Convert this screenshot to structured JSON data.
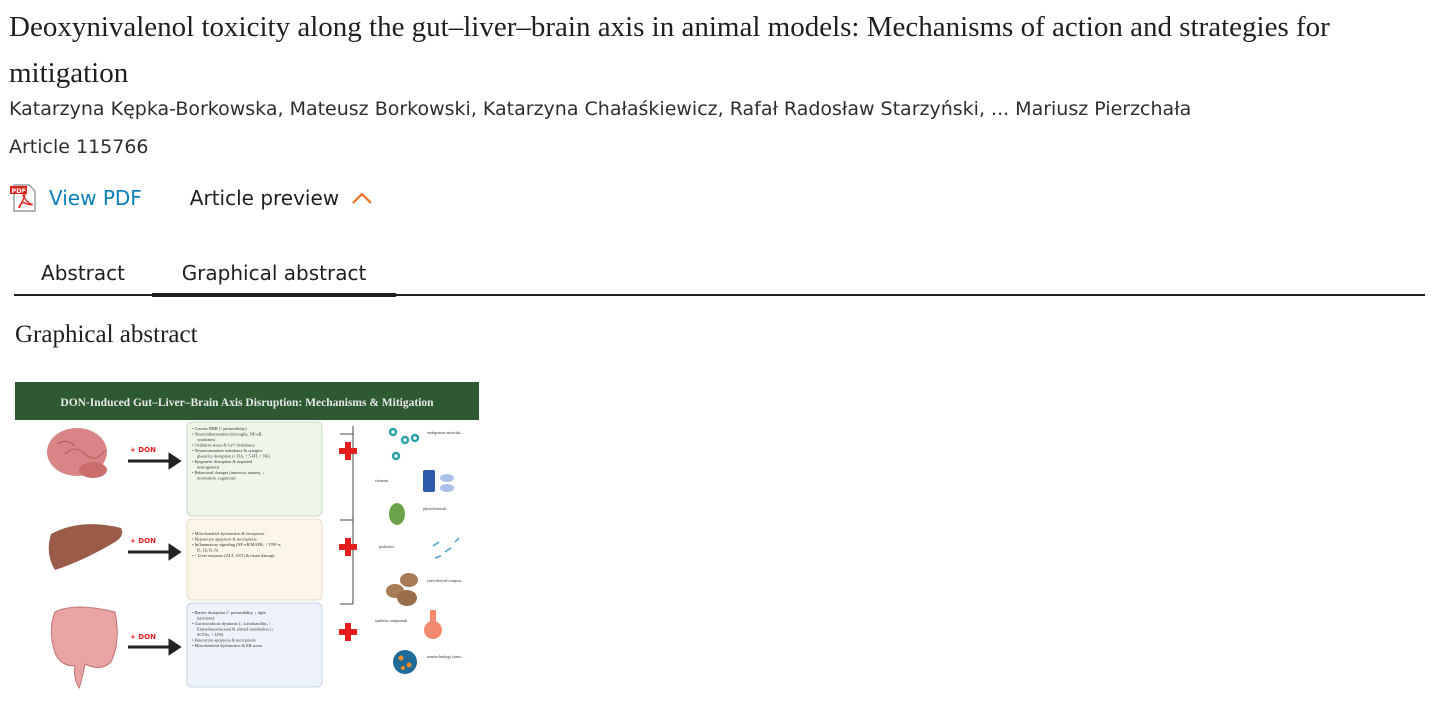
{
  "article": {
    "title": "Deoxynivalenol toxicity along the gut–liver–brain axis in animal models: Mechanisms of action and strategies for mitigation",
    "authors": "Katarzyna Kępka-Borkowska, Mateusz Borkowski, Katarzyna Chałaśkiewicz, Rafał Radosław Starzyński, ... Mariusz Pierzchała",
    "article_number": "Article 115766"
  },
  "actions": {
    "view_pdf": "View PDF",
    "article_preview": "Article preview",
    "pdf_icon_label": "PDF"
  },
  "colors": {
    "link": "#0c7dbb",
    "accent": "#f26f21",
    "figure_header": "#2d5a30"
  },
  "tabs": [
    {
      "label": "Abstract",
      "active": false
    },
    {
      "label": "Graphical abstract",
      "active": true
    }
  ],
  "graphical_abstract": {
    "heading": "Graphical abstract",
    "figure": {
      "title": "DON-Induced Gut–Liver–Brain Axis Disruption: Mechanisms & Mitigation",
      "exposure_label": "+ DON",
      "brain_effects": [
        "Crosses BBB (↑ permeability)",
        "Neuroinflammation (microglia, NF-κB, cytokines)",
        "Oxidative stress & Ca²⁺ imbalance",
        "Neurotransmitter imbalance & synaptic plasticity disruption (↓ DA, ↑ 5-HT, ↑ NE)",
        "Epigenetic disruption & impaired neurogenesis",
        "Behavioral changes (anorexia, anxiety, ↓ motivation, cognition)"
      ],
      "liver_effects": [
        "Mitochondrial dysfunction & ferroptosis",
        "Hepatocyte apoptosis & necroptosis",
        "Inflammatory signaling (NF-κB/MAPK; ↑ TNF-α, IL-1β, IL-6)",
        "↑ Liver enzymes (ALT, AST) & tissue damage"
      ],
      "gut_effects": [
        "Barrier disruption (↑ permeability, ↓ tight junctions)",
        "Gut microbiota dysbiosis (↓ Lactobacillus, ↑ Enterobacteriaceae) & altered metabolites (↓ SCFAs, ↑ LPS)",
        "Enterocyte apoptosis & necroptosis",
        "Mitochondrial dysfunction & ER stress"
      ],
      "mitigation": [
        "endogenous antioxidants",
        "vitamins",
        "phytochemicals",
        "probiotics",
        "yeast-derived components",
        "synthetic compounds",
        "nanotechnology (nano-binders, nanoparticles)"
      ]
    }
  }
}
